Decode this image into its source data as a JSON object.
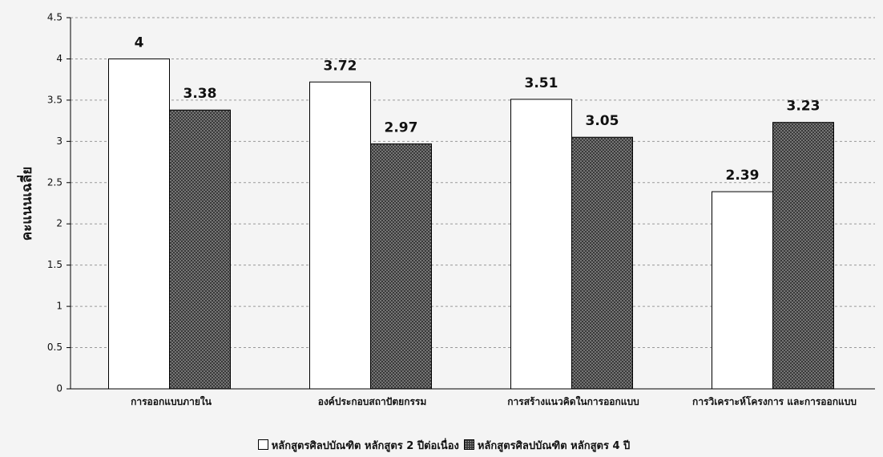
{
  "chart_data": {
    "type": "bar",
    "y_label": "คะแนนเฉลี่ย",
    "categories": [
      "การออกแบบภายใน",
      "องค์ประกอบสถาปัตยกรรม",
      "การสร้างแนวคิดในการออกแบบ",
      "การวิเคราะห์โครงการ และการออกแบบ"
    ],
    "series": [
      {
        "name": "หลักสูตรศิลปบัณฑิต  หลักสูตร 2 ปีต่อเนื่อง",
        "color": "#ffffff",
        "values": [
          4,
          3.72,
          3.51,
          2.39
        ]
      },
      {
        "name": "หลักสูตรศิลปบัณฑิต  หลักสูตร 4 ปี",
        "color": "#3a3a3a",
        "values": [
          3.38,
          2.97,
          3.05,
          3.23
        ]
      }
    ],
    "ylim": [
      0,
      4.5
    ],
    "yticks": [
      0,
      0.5,
      1,
      1.5,
      2,
      2.5,
      3,
      3.5,
      4,
      4.5
    ],
    "grid": true
  }
}
